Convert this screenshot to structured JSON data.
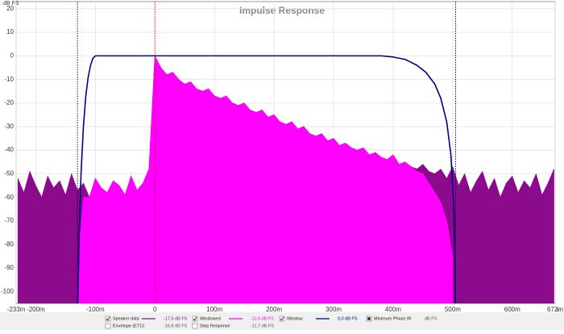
{
  "chart_data": {
    "type": "line",
    "title": "Impulse Response",
    "y_label": "dB FS",
    "x_unit": "s",
    "xlim": [
      -233,
      672
    ],
    "ylim": [
      -105,
      23
    ],
    "xticks": [
      {
        "value": -233,
        "label": "-233m"
      },
      {
        "value": -200,
        "label": "-200m"
      },
      {
        "value": -100,
        "label": "-100m"
      },
      0,
      {
        "value": 100,
        "label": "100m"
      },
      {
        "value": 200,
        "label": "200m"
      },
      {
        "value": 300,
        "label": "300m"
      },
      {
        "value": 400,
        "label": "400m"
      },
      {
        "value": 500,
        "label": "500m"
      },
      {
        "value": 600,
        "label": "600m"
      },
      {
        "value": 672,
        "label": "672m"
      }
    ],
    "yticks": [
      20,
      10,
      0,
      -10,
      -20,
      -30,
      -40,
      -50,
      -60,
      -70,
      -80,
      -90,
      -100
    ],
    "grid": true,
    "vlines": [
      {
        "x": -130,
        "color": "#000000"
      },
      {
        "x": 0,
        "color": "#e00000"
      },
      {
        "x": 505,
        "color": "#000000"
      }
    ],
    "series": [
      {
        "name": "Speaker data",
        "color": "#8c0a8c",
        "style": "area",
        "checked": true,
        "reading": "-17,5 dB FS",
        "x": [
          -230,
          -220,
          -210,
          -200,
          -190,
          -180,
          -170,
          -160,
          -150,
          -140,
          -130,
          -120,
          -110,
          -100,
          -90,
          -80,
          -70,
          -60,
          -50,
          -40,
          -30,
          -20,
          -10,
          0,
          10,
          20,
          30,
          40,
          50,
          60,
          70,
          80,
          90,
          100,
          110,
          120,
          130,
          140,
          150,
          160,
          170,
          180,
          190,
          200,
          210,
          220,
          230,
          240,
          250,
          260,
          270,
          280,
          290,
          300,
          310,
          320,
          330,
          340,
          350,
          360,
          370,
          380,
          390,
          400,
          410,
          420,
          430,
          440,
          450,
          460,
          470,
          480,
          490,
          500,
          510,
          520,
          530,
          540,
          550,
          560,
          570,
          580,
          590,
          600,
          610,
          620,
          630,
          640,
          650,
          660,
          670
        ],
        "values": [
          -52,
          -58,
          -49,
          -55,
          -60,
          -51,
          -56,
          -53,
          -59,
          -50,
          -57,
          -54,
          -60,
          -52,
          -56,
          -58,
          -53,
          -55,
          -59,
          -51,
          -57,
          -54,
          -48,
          0,
          -5,
          -8,
          -7,
          -10,
          -12,
          -11,
          -14,
          -15,
          -14,
          -17,
          -18,
          -17,
          -20,
          -21,
          -20,
          -23,
          -24,
          -23,
          -26,
          -25,
          -28,
          -29,
          -28,
          -31,
          -30,
          -33,
          -34,
          -33,
          -36,
          -35,
          -38,
          -37,
          -39,
          -40,
          -39,
          -42,
          -41,
          -43,
          -44,
          -42,
          -46,
          -45,
          -47,
          -48,
          -46,
          -49,
          -50,
          -48,
          -52,
          -47,
          -55,
          -50,
          -58,
          -53,
          -49,
          -57,
          -52,
          -60,
          -54,
          -51,
          -58,
          -53,
          -56,
          -50,
          -59,
          -54,
          -48
        ]
      },
      {
        "name": "Windowed",
        "color": "#ff00ff",
        "style": "area",
        "checked": true,
        "reading": "-11,5 dB FS",
        "x": [
          -130,
          -120,
          -110,
          -100,
          -90,
          -80,
          -70,
          -60,
          -50,
          -40,
          -30,
          -20,
          -10,
          0,
          10,
          20,
          30,
          40,
          50,
          60,
          70,
          80,
          90,
          100,
          110,
          120,
          130,
          140,
          150,
          160,
          170,
          180,
          190,
          200,
          210,
          220,
          230,
          240,
          250,
          260,
          270,
          280,
          290,
          300,
          310,
          320,
          330,
          340,
          350,
          360,
          370,
          380,
          390,
          400,
          410,
          420,
          430,
          440,
          450,
          460,
          470,
          480,
          490,
          500
        ],
        "values": [
          -90,
          -60,
          -60,
          -52,
          -56,
          -58,
          -53,
          -55,
          -59,
          -51,
          -57,
          -54,
          -48,
          0,
          -5,
          -8,
          -7,
          -10,
          -12,
          -11,
          -14,
          -15,
          -14,
          -17,
          -18,
          -17,
          -20,
          -21,
          -20,
          -23,
          -24,
          -23,
          -26,
          -25,
          -28,
          -29,
          -28,
          -31,
          -30,
          -33,
          -34,
          -33,
          -36,
          -35,
          -38,
          -37,
          -39,
          -40,
          -39,
          -42,
          -41,
          -43,
          -44,
          -42,
          -46,
          -45,
          -47,
          -49,
          -50,
          -54,
          -58,
          -62,
          -70,
          -85
        ]
      },
      {
        "name": "Window",
        "color": "#00008b",
        "style": "line",
        "checked": true,
        "reading": "0,0 dB FS",
        "x": [
          -130,
          -127,
          -124,
          -120,
          -116,
          -112,
          -108,
          -104,
          -100,
          380,
          400,
          420,
          440,
          455,
          470,
          480,
          490,
          497,
          502,
          505
        ],
        "values": [
          -110,
          -75,
          -50,
          -30,
          -17,
          -9,
          -4,
          -1,
          0,
          0,
          -0.5,
          -1.5,
          -4,
          -7,
          -12,
          -18,
          -28,
          -42,
          -65,
          -110
        ]
      },
      {
        "name": "Minimum Phase IR",
        "color": "#444444",
        "style": "none",
        "checked": "square",
        "reading": "dB FS"
      },
      {
        "name": "Envelope (ETC)",
        "color": "#888888",
        "style": "none",
        "checked": false,
        "reading": "-16,8 dB FS"
      },
      {
        "name": "Step Response",
        "color": "#888888",
        "style": "none",
        "checked": false,
        "reading": "-11,7 dB FS"
      }
    ]
  }
}
